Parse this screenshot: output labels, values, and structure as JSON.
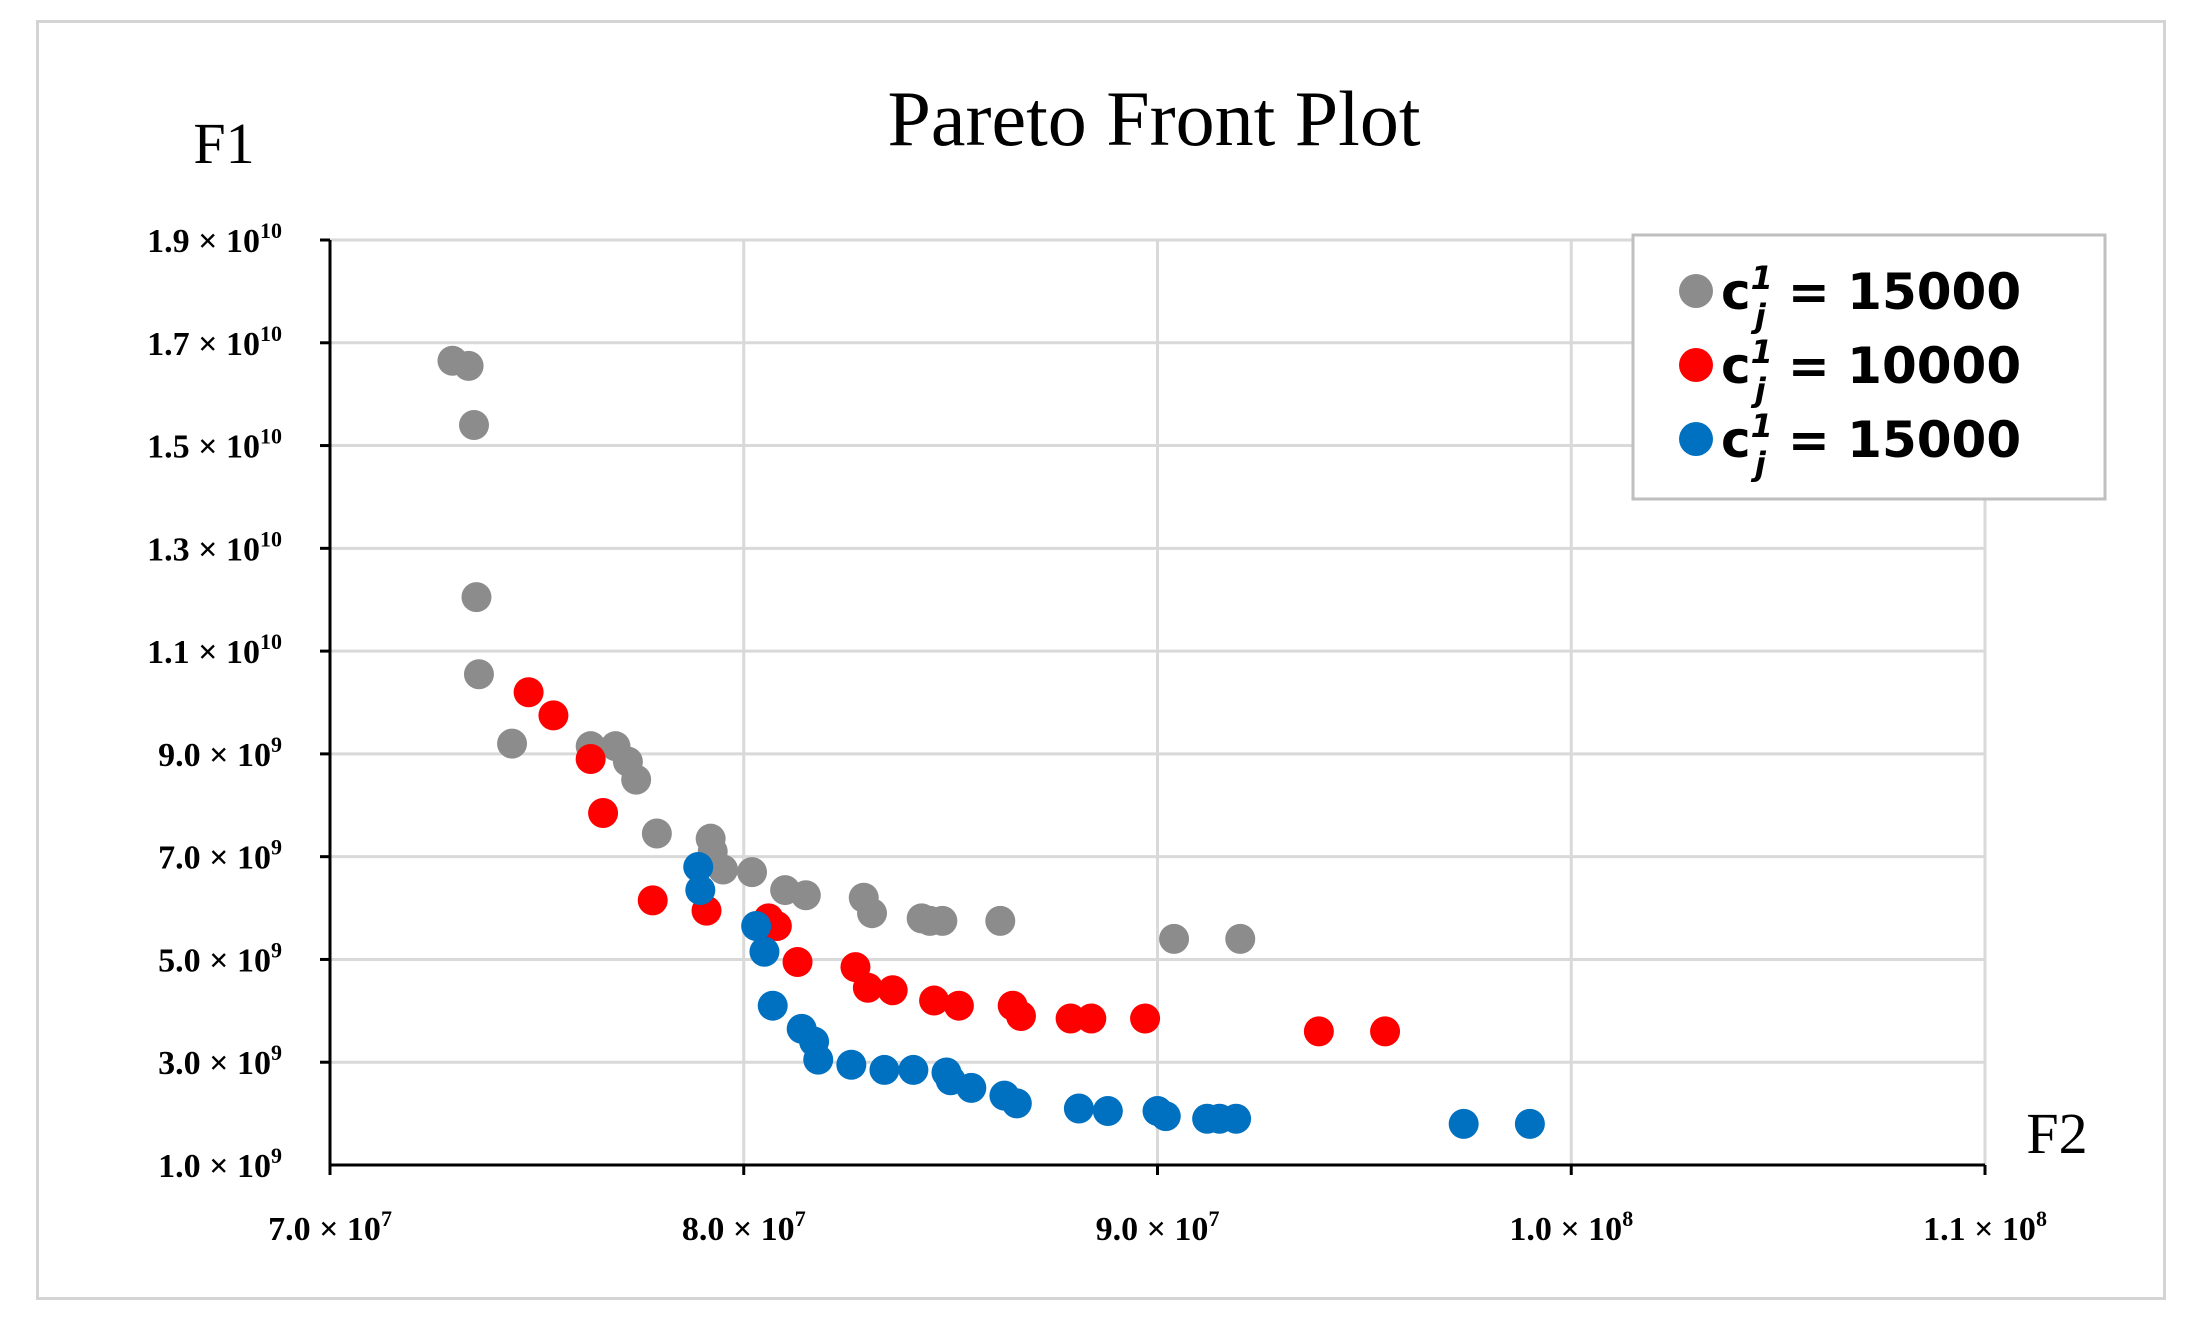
{
  "chart_data": {
    "type": "scatter",
    "title": "Pareto Front Plot",
    "xlabel": "F2",
    "ylabel": "F1",
    "xlim": [
      70000000,
      110000000
    ],
    "ylim": [
      1000000000,
      19000000000
    ],
    "x_ticks": [
      {
        "value": 70000000,
        "mantissa": "7.0",
        "base": "× 10",
        "exp": "7"
      },
      {
        "value": 80000000,
        "mantissa": "8.0",
        "base": "× 10",
        "exp": "7"
      },
      {
        "value": 90000000,
        "mantissa": "9.0",
        "base": "× 10",
        "exp": "7"
      },
      {
        "value": 100000000,
        "mantissa": "1.0",
        "base": "× 10",
        "exp": "8"
      },
      {
        "value": 110000000,
        "mantissa": "1.1",
        "base": "× 10",
        "exp": "8"
      }
    ],
    "y_ticks": [
      {
        "value": 1000000000,
        "mantissa": "1.0",
        "base": "× 10",
        "exp": "9"
      },
      {
        "value": 3000000000,
        "mantissa": "3.0",
        "base": "× 10",
        "exp": "9"
      },
      {
        "value": 5000000000,
        "mantissa": "5.0",
        "base": "× 10",
        "exp": "9"
      },
      {
        "value": 7000000000,
        "mantissa": "7.0",
        "base": "× 10",
        "exp": "9"
      },
      {
        "value": 9000000000,
        "mantissa": "9.0",
        "base": "× 10",
        "exp": "9"
      },
      {
        "value": 11000000000,
        "mantissa": "1.1",
        "base": "× 10",
        "exp": "10"
      },
      {
        "value": 13000000000,
        "mantissa": "1.3",
        "base": "× 10",
        "exp": "10"
      },
      {
        "value": 15000000000,
        "mantissa": "1.5",
        "base": "× 10",
        "exp": "10"
      },
      {
        "value": 17000000000,
        "mantissa": "1.7",
        "base": "× 10",
        "exp": "10"
      },
      {
        "value": 19000000000,
        "mantissa": "1.9",
        "base": "× 10",
        "exp": "10"
      }
    ],
    "grid": true,
    "legend_position": "top-right",
    "series": [
      {
        "name": "c_j^1 = 15000",
        "legend": {
          "base": "c",
          "sub": "j",
          "sup": "1",
          "eq": "= 15000"
        },
        "color": "#8c8c8c",
        "x": [
          72960000,
          73350000,
          73480000,
          73540000,
          73600000,
          74400000,
          76300000,
          76900000,
          77200000,
          77400000,
          77900000,
          79200000,
          79250000,
          79500000,
          80200000,
          81000000,
          81500000,
          82900000,
          83100000,
          84300000,
          84500000,
          84800000,
          86200000,
          90400000,
          92000000
        ],
        "y": [
          16650000000,
          16550000000,
          15400000000,
          12050000000,
          10550000000,
          9200000000,
          9150000000,
          9150000000,
          8850000000,
          8500000000,
          7450000000,
          7350000000,
          7100000000,
          6750000000,
          6700000000,
          6350000000,
          6250000000,
          6200000000,
          5900000000,
          5800000000,
          5750000000,
          5750000000,
          5750000000,
          5400000000,
          5400000000
        ]
      },
      {
        "name": "c_j^1 = 10000",
        "legend": {
          "base": "c",
          "sub": "j",
          "sup": "1",
          "eq": "= 10000"
        },
        "color": "#fe0000",
        "x": [
          74800000,
          75400000,
          76300000,
          76600000,
          77800000,
          79100000,
          80600000,
          80800000,
          81300000,
          82700000,
          83000000,
          83600000,
          84600000,
          85200000,
          86500000,
          86700000,
          87900000,
          88400000,
          89700000,
          93900000,
          95500000
        ],
        "y": [
          10200000000,
          9750000000,
          8900000000,
          7850000000,
          6150000000,
          5950000000,
          5800000000,
          5650000000,
          4950000000,
          4850000000,
          4450000000,
          4400000000,
          4200000000,
          4100000000,
          4100000000,
          3900000000,
          3850000000,
          3850000000,
          3850000000,
          3600000000,
          3600000000
        ]
      },
      {
        "name": "c_j^1 = 15000",
        "legend": {
          "base": "c",
          "sub": "j",
          "sup": "1",
          "eq": "= 15000"
        },
        "color": "#0070c0",
        "x": [
          78900000,
          78950000,
          80300000,
          80500000,
          80700000,
          81400000,
          81700000,
          81800000,
          82600000,
          83400000,
          84100000,
          84900000,
          85000000,
          85500000,
          86300000,
          86600000,
          88100000,
          88800000,
          90000000,
          90200000,
          91200000,
          91500000,
          91900000,
          97400000,
          99000000
        ],
        "y": [
          6800000000,
          6350000000,
          5650000000,
          5150000000,
          4100000000,
          3650000000,
          3400000000,
          3050000000,
          2950000000,
          2850000000,
          2850000000,
          2800000000,
          2650000000,
          2500000000,
          2350000000,
          2200000000,
          2100000000,
          2050000000,
          2050000000,
          1950000000,
          1900000000,
          1900000000,
          1900000000,
          1800000000,
          1800000000
        ]
      }
    ]
  }
}
